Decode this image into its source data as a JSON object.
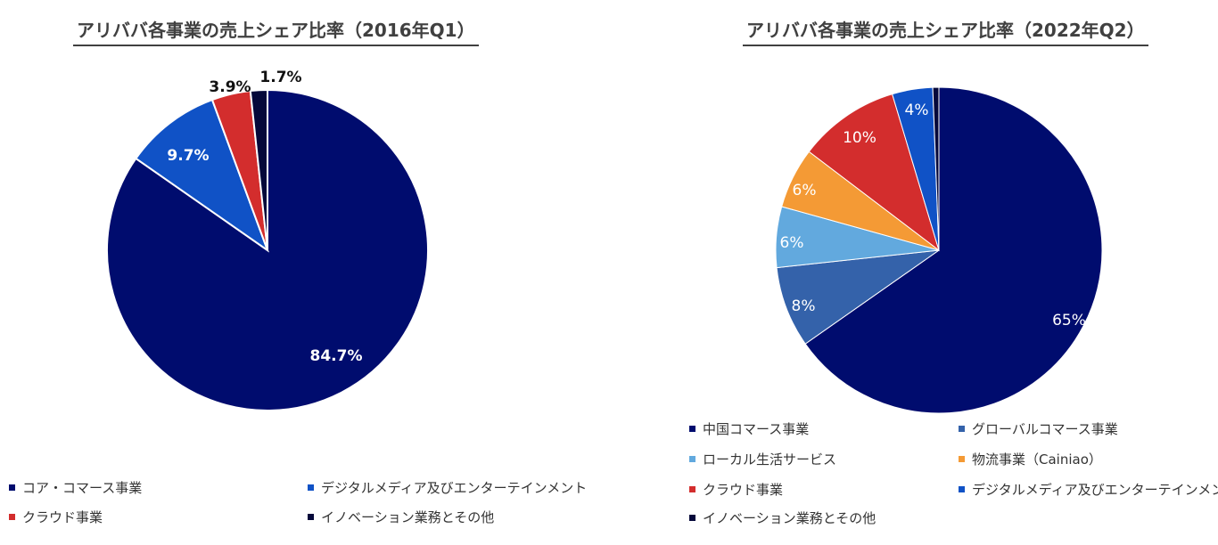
{
  "chart_data": [
    {
      "type": "pie",
      "title": "アリババ各事業の売上シェア比率（2016年Q1）",
      "slices": [
        {
          "name": "コア・コマース事業",
          "value": 84.7,
          "label": "84.7%",
          "color": "#000c6e",
          "label_color": "#ffffff"
        },
        {
          "name": "デジタルメディア及びエンターテインメント",
          "value": 9.7,
          "label": "9.7%",
          "color": "#1052c6",
          "label_color": "#ffffff"
        },
        {
          "name": "クラウド事業",
          "value": 3.9,
          "label": "3.9%",
          "color": "#d32d2d",
          "label_color": "#111111"
        },
        {
          "name": "イノベーション業務とその他",
          "value": 1.7,
          "label": "1.7%",
          "color": "#05083a",
          "label_color": "#111111"
        }
      ]
    },
    {
      "type": "pie",
      "title": "アリババ各事業の売上シェア比率（2022年Q2）",
      "slices": [
        {
          "name": "中国コマース事業",
          "value": 65,
          "label": "65%",
          "color": "#000c6e",
          "label_color": "#ffffff"
        },
        {
          "name": "グローバルコマース事業",
          "value": 8,
          "label": "8%",
          "color": "#3462aa",
          "label_color": "#ffffff"
        },
        {
          "name": "ローカル生活サービス",
          "value": 6,
          "label": "6%",
          "color": "#62a9de",
          "label_color": "#ffffff"
        },
        {
          "name": "物流事業（Cainiao）",
          "value": 6,
          "label": "6%",
          "color": "#f49a35",
          "label_color": "#ffffff"
        },
        {
          "name": "クラウド事業",
          "value": 10,
          "label": "10%",
          "color": "#d32d2d",
          "label_color": "#ffffff"
        },
        {
          "name": "デジタルメディア及びエンターテインメント",
          "value": 4,
          "label": "4%",
          "color": "#1052c6",
          "label_color": "#ffffff"
        },
        {
          "name": "イノベーション業務とその他",
          "value": 0.6,
          "label": "",
          "color": "#05083a",
          "label_color": "#ffffff"
        }
      ]
    }
  ]
}
